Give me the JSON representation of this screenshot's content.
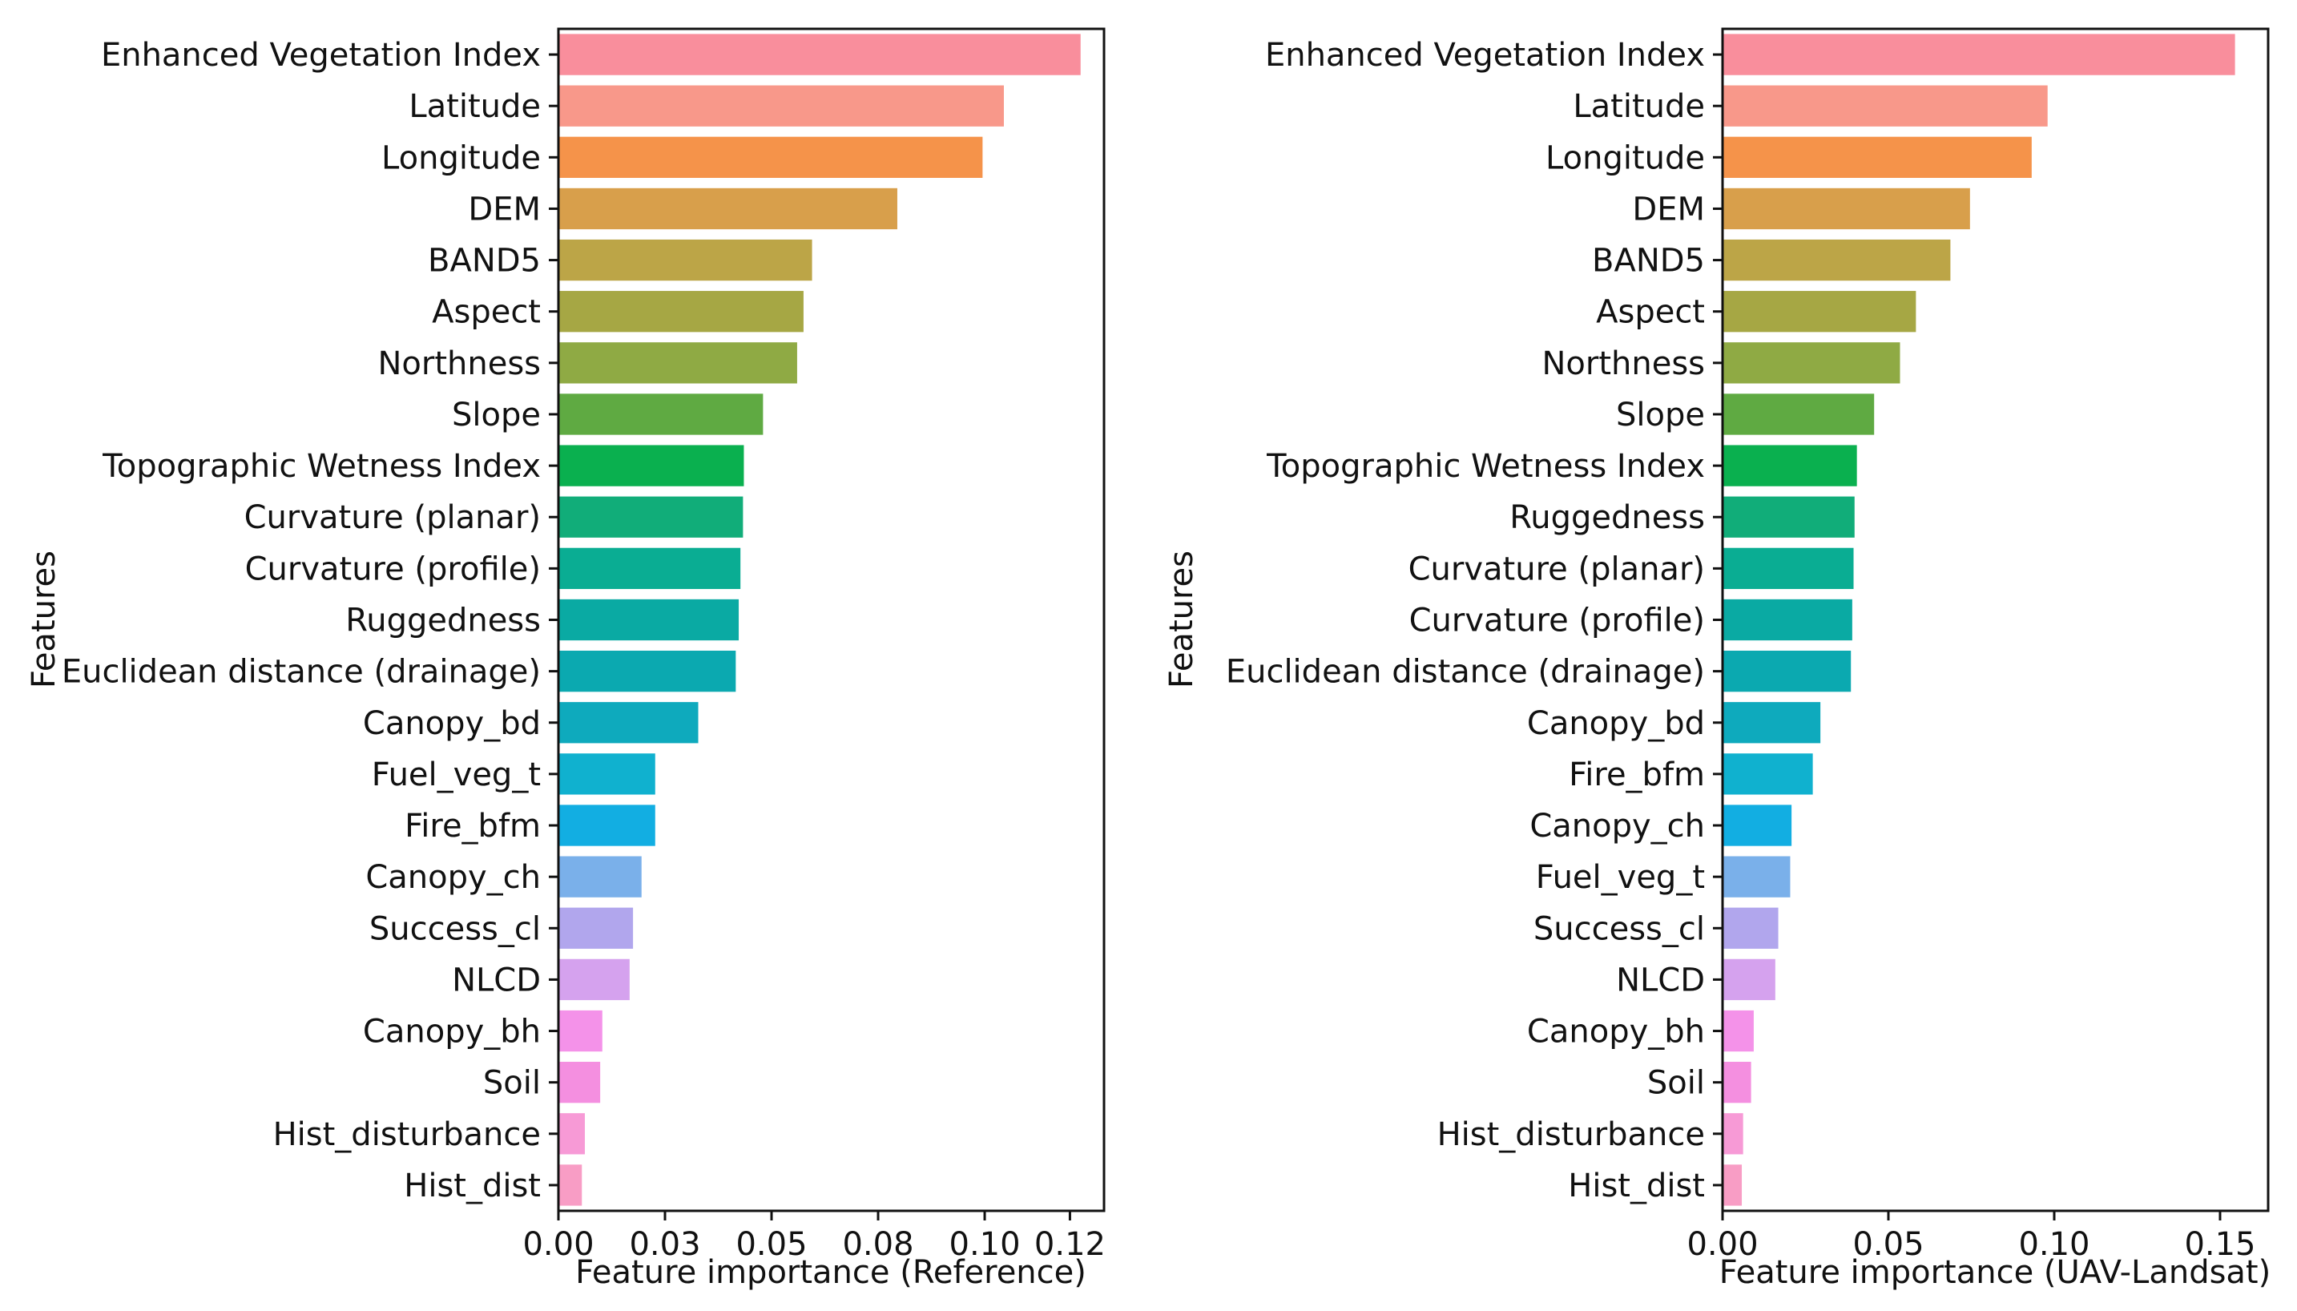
{
  "colors": {
    "axis": "#111111",
    "palette": [
      "#f98e9c",
      "#f8988a",
      "#f5934a",
      "#d89f4b",
      "#bca547",
      "#a6a744",
      "#8faa44",
      "#5faa42",
      "#0ab04f",
      "#11ad79",
      "#0aad93",
      "#0aaaa3",
      "#0ba9b0",
      "#0eaabd",
      "#10b1cf",
      "#12aee2",
      "#7ab0ea",
      "#b1a6ed",
      "#d5a2ee",
      "#f492e9",
      "#f48fe0",
      "#f79ad6",
      "#f89dc5"
    ]
  },
  "chart_data": [
    {
      "type": "bar",
      "orientation": "horizontal",
      "title": "",
      "xlabel": "Feature importance (Reference)",
      "ylabel": "Features",
      "xlim": [
        0,
        0.128
      ],
      "xticks": [
        0.0,
        0.025,
        0.05,
        0.075,
        0.1,
        0.12
      ],
      "xtick_labels": [
        "0.00",
        "0.03",
        "0.05",
        "0.08",
        "0.10",
        "0.12"
      ],
      "categories": [
        "Enhanced Vegetation Index",
        "Latitude",
        "Longitude",
        "DEM",
        "BAND5",
        "Aspect",
        "Northness",
        "Slope",
        "Topographic Wetness Index",
        "Curvature (planar)",
        "Curvature (profile)",
        "Ruggedness",
        "Euclidean distance (drainage)",
        "Canopy_bd",
        "Fuel_veg_t",
        "Fire_bfm",
        "Canopy_ch",
        "Success_cl",
        "NLCD",
        "Canopy_bh",
        "Soil",
        "Hist_disturbance",
        "Hist_dist"
      ],
      "values": [
        0.1225,
        0.1045,
        0.0995,
        0.0795,
        0.0595,
        0.0575,
        0.056,
        0.048,
        0.0435,
        0.0433,
        0.0427,
        0.0423,
        0.0416,
        0.0328,
        0.0227,
        0.0227,
        0.0195,
        0.0175,
        0.0167,
        0.0103,
        0.0098,
        0.0062,
        0.0055
      ]
    },
    {
      "type": "bar",
      "orientation": "horizontal",
      "title": "",
      "xlabel": "Feature importance (UAV-Landsat)",
      "ylabel": "Features",
      "xlim": [
        0,
        0.1645
      ],
      "xticks": [
        0.0,
        0.05,
        0.1,
        0.15
      ],
      "xtick_labels": [
        "0.00",
        "0.05",
        "0.10",
        "0.15"
      ],
      "categories": [
        "Enhanced Vegetation Index",
        "Latitude",
        "Longitude",
        "DEM",
        "BAND5",
        "Aspect",
        "Northness",
        "Slope",
        "Topographic Wetness Index",
        "Ruggedness",
        "Curvature (planar)",
        "Curvature (profile)",
        "Euclidean distance (drainage)",
        "Canopy_bd",
        "Fire_bfm",
        "Canopy_ch",
        "Fuel_veg_t",
        "Success_cl",
        "NLCD",
        "Canopy_bh",
        "Soil",
        "Hist_disturbance",
        "Hist_dist"
      ],
      "values": [
        0.1545,
        0.098,
        0.0932,
        0.0746,
        0.0687,
        0.0583,
        0.0535,
        0.0457,
        0.0405,
        0.0398,
        0.0395,
        0.0391,
        0.0387,
        0.0295,
        0.0272,
        0.0208,
        0.0204,
        0.0168,
        0.0159,
        0.0094,
        0.0086,
        0.0062,
        0.0058
      ]
    }
  ]
}
